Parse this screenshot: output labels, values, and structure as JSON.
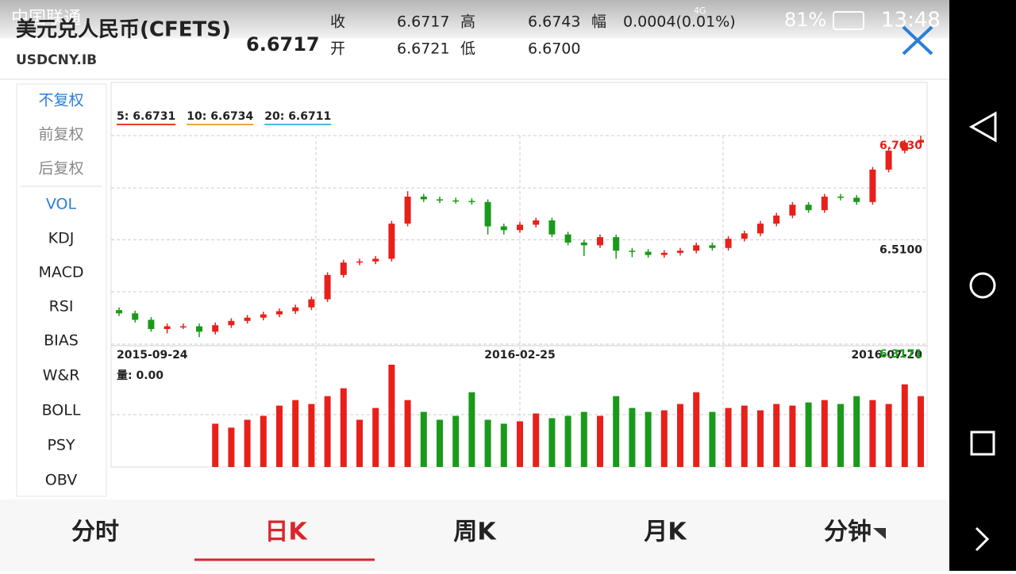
{
  "status": {
    "carrier": "中国联通",
    "network": "4G",
    "battery": "81%",
    "time": "13:48"
  },
  "header": {
    "name": "美元兑人民币(CFETS)",
    "code": "USDCNY.IB",
    "price": "6.6717",
    "close_label": "收",
    "close": "6.6717",
    "high_label": "高",
    "high": "6.6743",
    "change_label": "幅",
    "change": "0.0004(0.01%)",
    "open_label": "开",
    "open": "6.6721",
    "low_label": "低",
    "low": "6.6700"
  },
  "menu": [
    "不复权",
    "前复权",
    "后复权",
    "VOL",
    "KDJ",
    "MACD",
    "RSI",
    "BIAS",
    "W&R",
    "BOLL",
    "PSY",
    "OBV"
  ],
  "chart": {
    "type": "candlestick",
    "ma_legend": [
      {
        "label": "5: 6.6731",
        "color": "#e8392b"
      },
      {
        "label": "10: 6.6734",
        "color": "#e8a83a"
      },
      {
        "label": "20: 6.6711",
        "color": "#4bb6e6"
      }
    ],
    "ylim": [
      6.3171,
      6.703
    ],
    "yticks": [
      {
        "value": 6.703,
        "label": "6.7030"
      },
      {
        "value": 6.51,
        "label": "6.5100"
      },
      6.3171
    ],
    "dates": [
      "2015-09-24",
      "2016-02-25",
      "2016-07-20"
    ],
    "open": [
      6.38,
      6.374,
      6.362,
      6.345,
      6.35,
      6.35,
      6.34,
      6.352,
      6.36,
      6.366,
      6.372,
      6.378,
      6.385,
      6.4,
      6.445,
      6.468,
      6.47,
      6.475,
      6.54,
      6.59,
      6.585,
      6.583,
      6.582,
      6.58,
      6.535,
      6.528,
      6.538,
      6.546,
      6.52,
      6.505,
      6.5,
      6.515,
      6.49,
      6.488,
      6.482,
      6.486,
      6.49,
      6.5,
      6.495,
      6.512,
      6.522,
      6.54,
      6.555,
      6.575,
      6.565,
      6.59,
      6.588,
      6.58,
      6.64,
      6.675,
      6.69
    ],
    "high": [
      6.385,
      6.379,
      6.367,
      6.355,
      6.355,
      6.355,
      6.357,
      6.365,
      6.371,
      6.377,
      6.383,
      6.39,
      6.405,
      6.45,
      6.473,
      6.475,
      6.48,
      6.545,
      6.6,
      6.595,
      6.59,
      6.588,
      6.587,
      6.585,
      6.54,
      6.543,
      6.551,
      6.551,
      6.525,
      6.51,
      6.52,
      6.52,
      6.495,
      6.493,
      6.491,
      6.495,
      6.505,
      6.505,
      6.517,
      6.527,
      6.545,
      6.56,
      6.58,
      6.58,
      6.595,
      6.595,
      6.593,
      6.645,
      6.68,
      6.695,
      6.703
    ],
    "low": [
      6.369,
      6.357,
      6.34,
      6.337,
      6.345,
      6.33,
      6.335,
      6.347,
      6.355,
      6.361,
      6.367,
      6.373,
      6.38,
      6.395,
      6.44,
      6.463,
      6.465,
      6.47,
      6.535,
      6.58,
      6.578,
      6.577,
      6.575,
      6.52,
      6.52,
      6.523,
      6.533,
      6.515,
      6.5,
      6.48,
      6.495,
      6.475,
      6.478,
      6.477,
      6.477,
      6.481,
      6.485,
      6.49,
      6.49,
      6.507,
      6.517,
      6.535,
      6.55,
      6.56,
      6.56,
      6.583,
      6.575,
      6.575,
      6.635,
      6.67,
      6.685
    ],
    "close": [
      6.374,
      6.362,
      6.345,
      6.35,
      6.35,
      6.34,
      6.352,
      6.36,
      6.366,
      6.372,
      6.378,
      6.385,
      6.4,
      6.445,
      6.468,
      6.47,
      6.475,
      6.54,
      6.59,
      6.585,
      6.583,
      6.582,
      6.58,
      6.535,
      6.528,
      6.538,
      6.546,
      6.52,
      6.505,
      6.5,
      6.515,
      6.49,
      6.488,
      6.482,
      6.486,
      6.49,
      6.5,
      6.495,
      6.512,
      6.522,
      6.54,
      6.555,
      6.575,
      6.565,
      6.59,
      6.588,
      6.58,
      6.64,
      6.675,
      6.69,
      6.695
    ],
    "volume_label": "量: 0.00",
    "volume": [
      null,
      null,
      null,
      null,
      null,
      null,
      55,
      50,
      60,
      65,
      78,
      85,
      80,
      90,
      100,
      60,
      75,
      130,
      85,
      70,
      60,
      65,
      95,
      60,
      55,
      58,
      68,
      62,
      65,
      70,
      65,
      90,
      75,
      70,
      72,
      80,
      95,
      70,
      75,
      78,
      72,
      80,
      78,
      82,
      85,
      80,
      90,
      85,
      80,
      105,
      90
    ],
    "volume_ylim": [
      0,
      130
    ]
  },
  "tabs": [
    "分时",
    "日K",
    "周K",
    "月K",
    "分钟"
  ]
}
